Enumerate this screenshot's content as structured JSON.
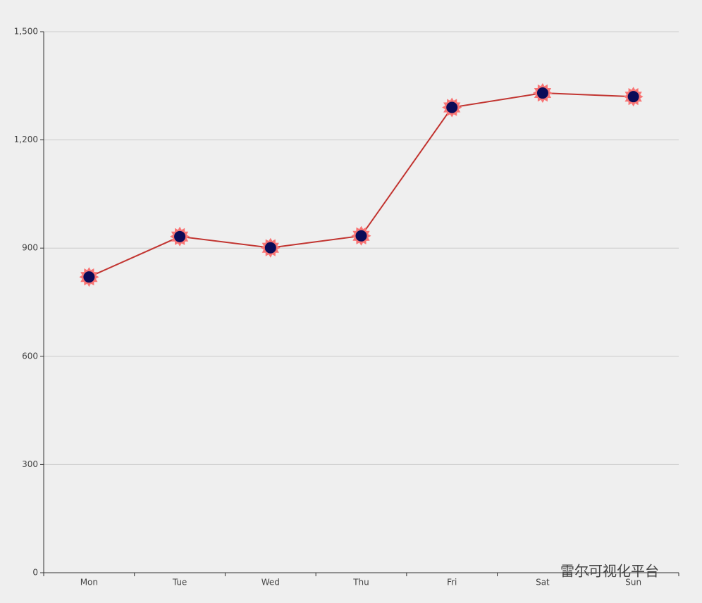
{
  "chart_data": {
    "type": "line",
    "categories": [
      "Mon",
      "Tue",
      "Wed",
      "Thu",
      "Fri",
      "Sat",
      "Sun"
    ],
    "series": [
      {
        "color": "#c23531",
        "marker_color": "#f87474",
        "marker_center_color": "#0b0b58",
        "values": [
          820,
          932,
          901,
          934,
          1290,
          1330,
          1320
        ]
      }
    ],
    "ylim": [
      0,
      1500
    ],
    "yticks": [
      0,
      300,
      600,
      900,
      {
        "value": 1200,
        "label": "1,200"
      },
      {
        "value": 1500,
        "label": "1,500"
      }
    ],
    "grid": true,
    "watermark": "雷尔可视化平台"
  }
}
